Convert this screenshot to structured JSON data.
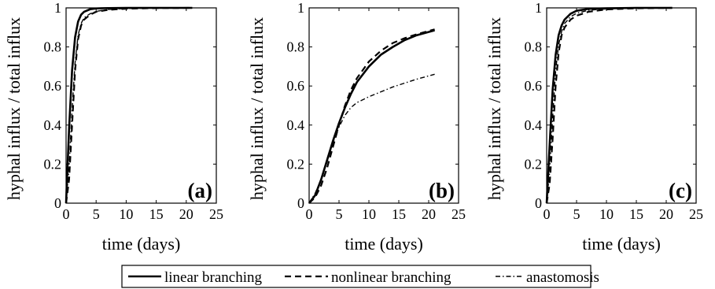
{
  "chart_data": [
    {
      "type": "line",
      "panel_label": "(a)",
      "xlabel": "time (days)",
      "ylabel": "hyphal influx / total influx",
      "xlim": [
        0,
        25
      ],
      "ylim": [
        0,
        1
      ],
      "xticks": [
        "0",
        "5",
        "10",
        "15",
        "20",
        "25"
      ],
      "yticks": [
        "0",
        "0.2",
        "0.4",
        "0.6",
        "0.8",
        "1"
      ],
      "series": [
        {
          "name": "linear branching",
          "x": [
            0,
            0.5,
            1,
            1.5,
            2,
            2.5,
            3,
            4,
            5,
            7,
            10,
            15,
            21
          ],
          "y": [
            0,
            0.38,
            0.68,
            0.85,
            0.93,
            0.965,
            0.98,
            0.993,
            0.997,
            0.999,
            1.0,
            1.0,
            1.0
          ]
        },
        {
          "name": "nonlinear branching",
          "x": [
            0,
            0.5,
            1,
            1.5,
            2,
            2.5,
            3,
            4,
            5,
            7,
            10,
            15,
            21
          ],
          "y": [
            0,
            0.12,
            0.4,
            0.68,
            0.84,
            0.91,
            0.94,
            0.965,
            0.98,
            0.99,
            0.996,
            0.999,
            1.0
          ]
        },
        {
          "name": "anastomosis",
          "x": [
            0,
            0.5,
            1,
            1.5,
            2,
            2.5,
            3,
            4,
            5,
            7,
            10,
            15,
            21
          ],
          "y": [
            0,
            0.18,
            0.48,
            0.72,
            0.86,
            0.92,
            0.95,
            0.97,
            0.982,
            0.992,
            0.997,
            0.999,
            1.0
          ]
        }
      ]
    },
    {
      "type": "line",
      "panel_label": "(b)",
      "xlabel": "time (days)",
      "ylabel": "hyphal influx / total influx",
      "xlim": [
        0,
        25
      ],
      "ylim": [
        0,
        1
      ],
      "xticks": [
        "0",
        "5",
        "10",
        "15",
        "20",
        "25"
      ],
      "yticks": [
        "0",
        "0.2",
        "0.4",
        "0.6",
        "0.8",
        "1"
      ],
      "series": [
        {
          "name": "linear branching",
          "x": [
            0,
            1,
            2,
            3,
            4,
            5,
            6,
            7,
            8,
            10,
            12,
            14,
            16,
            18,
            21
          ],
          "y": [
            0,
            0.04,
            0.12,
            0.22,
            0.32,
            0.41,
            0.49,
            0.56,
            0.62,
            0.7,
            0.76,
            0.8,
            0.835,
            0.86,
            0.885
          ]
        },
        {
          "name": "nonlinear branching",
          "x": [
            0,
            1,
            2,
            3,
            4,
            5,
            6,
            7,
            8,
            10,
            12,
            14,
            16,
            18,
            21
          ],
          "y": [
            0,
            0.03,
            0.09,
            0.18,
            0.29,
            0.4,
            0.5,
            0.58,
            0.64,
            0.725,
            0.78,
            0.82,
            0.845,
            0.865,
            0.89
          ]
        },
        {
          "name": "anastomosis",
          "x": [
            0,
            1,
            2,
            3,
            4,
            5,
            6,
            7,
            8,
            10,
            12,
            14,
            16,
            18,
            21
          ],
          "y": [
            0,
            0.05,
            0.12,
            0.21,
            0.31,
            0.39,
            0.45,
            0.49,
            0.515,
            0.545,
            0.57,
            0.595,
            0.615,
            0.635,
            0.66
          ]
        }
      ]
    },
    {
      "type": "line",
      "panel_label": "(c)",
      "xlabel": "time (days)",
      "ylabel": "hyphal influx / total influx",
      "xlim": [
        0,
        25
      ],
      "ylim": [
        0,
        1
      ],
      "xticks": [
        "0",
        "5",
        "10",
        "15",
        "20",
        "25"
      ],
      "yticks": [
        "0",
        "0.2",
        "0.4",
        "0.6",
        "0.8",
        "1"
      ],
      "series": [
        {
          "name": "linear branching",
          "x": [
            0,
            0.5,
            1,
            1.5,
            2,
            2.5,
            3,
            4,
            5,
            7,
            10,
            15,
            21
          ],
          "y": [
            0,
            0.3,
            0.58,
            0.76,
            0.86,
            0.91,
            0.94,
            0.97,
            0.985,
            0.995,
            0.998,
            1.0,
            1.0
          ]
        },
        {
          "name": "nonlinear branching",
          "x": [
            0,
            0.5,
            1,
            1.5,
            2,
            2.5,
            3,
            4,
            5,
            7,
            10,
            15,
            21
          ],
          "y": [
            0,
            0.1,
            0.33,
            0.6,
            0.77,
            0.86,
            0.9,
            0.94,
            0.96,
            0.98,
            0.992,
            0.998,
            1.0
          ]
        },
        {
          "name": "anastomosis",
          "x": [
            0,
            0.5,
            1,
            1.5,
            2,
            2.5,
            3,
            4,
            5,
            7,
            10,
            15,
            21
          ],
          "y": [
            0,
            0.16,
            0.44,
            0.68,
            0.81,
            0.88,
            0.92,
            0.955,
            0.972,
            0.988,
            0.995,
            0.999,
            1.0
          ]
        }
      ]
    }
  ],
  "legend": {
    "placement": "bottom-center",
    "items": [
      {
        "label": "linear branching",
        "style": "solid"
      },
      {
        "label": "nonlinear branching",
        "style": "dashed"
      },
      {
        "label": "anastomosis",
        "style": "dashdot"
      }
    ]
  }
}
